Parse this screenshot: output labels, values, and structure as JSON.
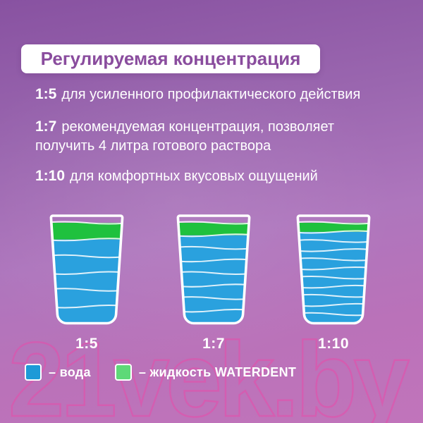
{
  "title": "Регулируемая концентрация",
  "concentrations": [
    {
      "ratio": "1:5",
      "description": "для усиленного профилактического действия"
    },
    {
      "ratio": "1:7",
      "description": "рекомендуемая концентрация, позволяет\nполучить 4 литра готового раствора"
    },
    {
      "ratio": "1:10",
      "description": "для комфортных вкусовых ощущений"
    }
  ],
  "glasses": [
    {
      "label": "1:5",
      "water_parts": 5
    },
    {
      "label": "1:7",
      "water_parts": 7
    },
    {
      "label": "1:10",
      "water_parts": 10
    }
  ],
  "legend": [
    {
      "name": "water",
      "color": "#1d9ad7",
      "label": "– вода"
    },
    {
      "name": "waterdent-liquid",
      "color": "#5ed978",
      "label": "– жидкость WATERDENT"
    }
  ],
  "watermark": "21vek.by",
  "colors": {
    "water_fill": "#2aa1de",
    "green_fill": "#1fc13e",
    "glass_outline": "#ffffff"
  }
}
